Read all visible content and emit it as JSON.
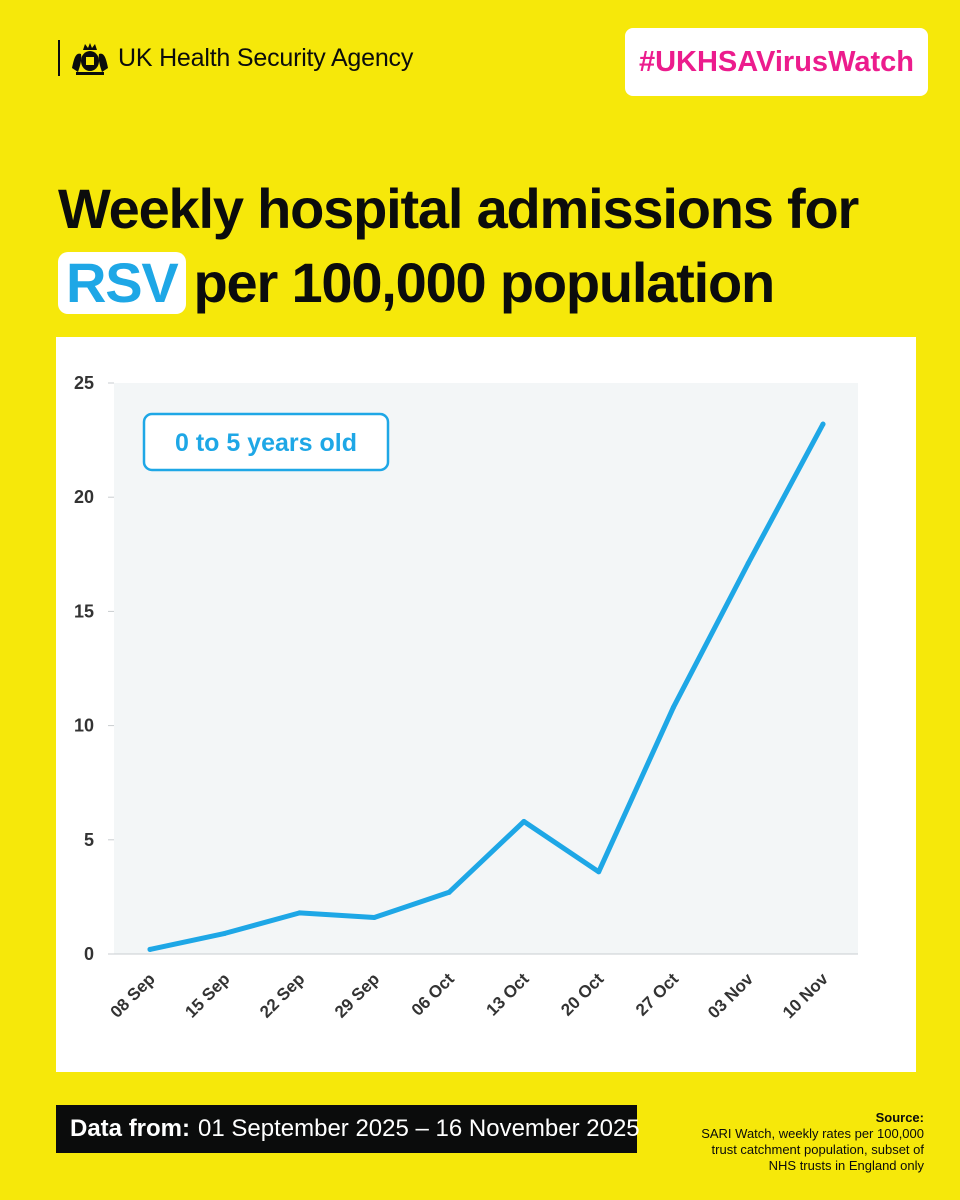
{
  "brand": {
    "name": "UK Health Security Agency",
    "logo": "royal-crest"
  },
  "hashtag": "#UKHSAVirusWatch",
  "title": {
    "highlight": "RSV",
    "line1": "Weekly hospital admissions for",
    "line2": "per 100,000 population"
  },
  "chart_data": {
    "type": "line",
    "title": "",
    "xlabel": "",
    "ylabel": "",
    "ylim": [
      0,
      25
    ],
    "yticks": [
      "0",
      "5",
      "10",
      "15",
      "20",
      "25"
    ],
    "categories": [
      "08 Sep",
      "15 Sep",
      "22 Sep",
      "29 Sep",
      "06 Oct",
      "13 Oct",
      "20 Oct",
      "27 Oct",
      "03 Nov",
      "10 Nov"
    ],
    "series": [
      {
        "values": [
          0.2,
          0.9,
          1.8,
          1.6,
          2.7,
          5.8,
          3.6,
          10.8,
          17.1,
          23.2
        ]
      }
    ],
    "annotation": "0 to 5 years old",
    "grid": false,
    "colors": {
      "line": "#1ea7e6",
      "plot_bg": "#f3f6f7"
    }
  },
  "footer": {
    "data_from_label": "Data from:",
    "data_from_range": "01 September 2025 – 16 November 2025",
    "source_label": "Source:",
    "source_lines": [
      "SARI Watch, weekly rates per 100,000",
      "trust catchment population, subset of",
      "NHS trusts in England only"
    ]
  },
  "colors": {
    "background": "#f6e80a",
    "accent_pink": "#ec1c8d",
    "accent_blue": "#1ea7e6"
  }
}
